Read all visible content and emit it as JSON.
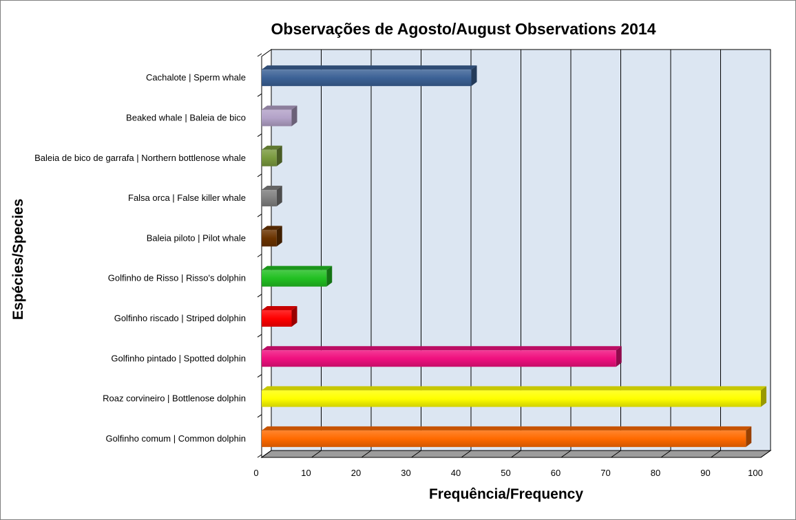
{
  "chart_data": {
    "type": "bar",
    "orientation": "horizontal",
    "title": "Observações de Agosto/August Observations 2014",
    "xlabel": "Frequência/Frequency",
    "ylabel": "Espécies/Species",
    "xlim": [
      0,
      100
    ],
    "xticks": [
      0,
      10,
      20,
      30,
      40,
      50,
      60,
      70,
      80,
      90,
      100
    ],
    "grid": true,
    "legend": "none",
    "categories": [
      "Cachalote | Sperm whale",
      "Beaked whale | Baleia de bico",
      "Baleia de bico de garrafa | Northern bottlenose whale",
      "Falsa orca | False killer whale",
      "Baleia piloto | Pilot whale",
      "Golfinho de Risso | Risso's dolphin",
      "Golfinho riscado | Striped dolphin",
      "Golfinho pintado | Spotted dolphin",
      "Roaz corvineiro | Bottlenose dolphin",
      "Golfinho comum | Common dolphin"
    ],
    "values": [
      42,
      6,
      3,
      3,
      3,
      13,
      6,
      71,
      100,
      97
    ],
    "colors": [
      "#3c6296",
      "#b3a2c8",
      "#7a9a3e",
      "#808080",
      "#6b3300",
      "#22c022",
      "#ff0000",
      "#f0107f",
      "#ffff00",
      "#ff6a00"
    ]
  }
}
